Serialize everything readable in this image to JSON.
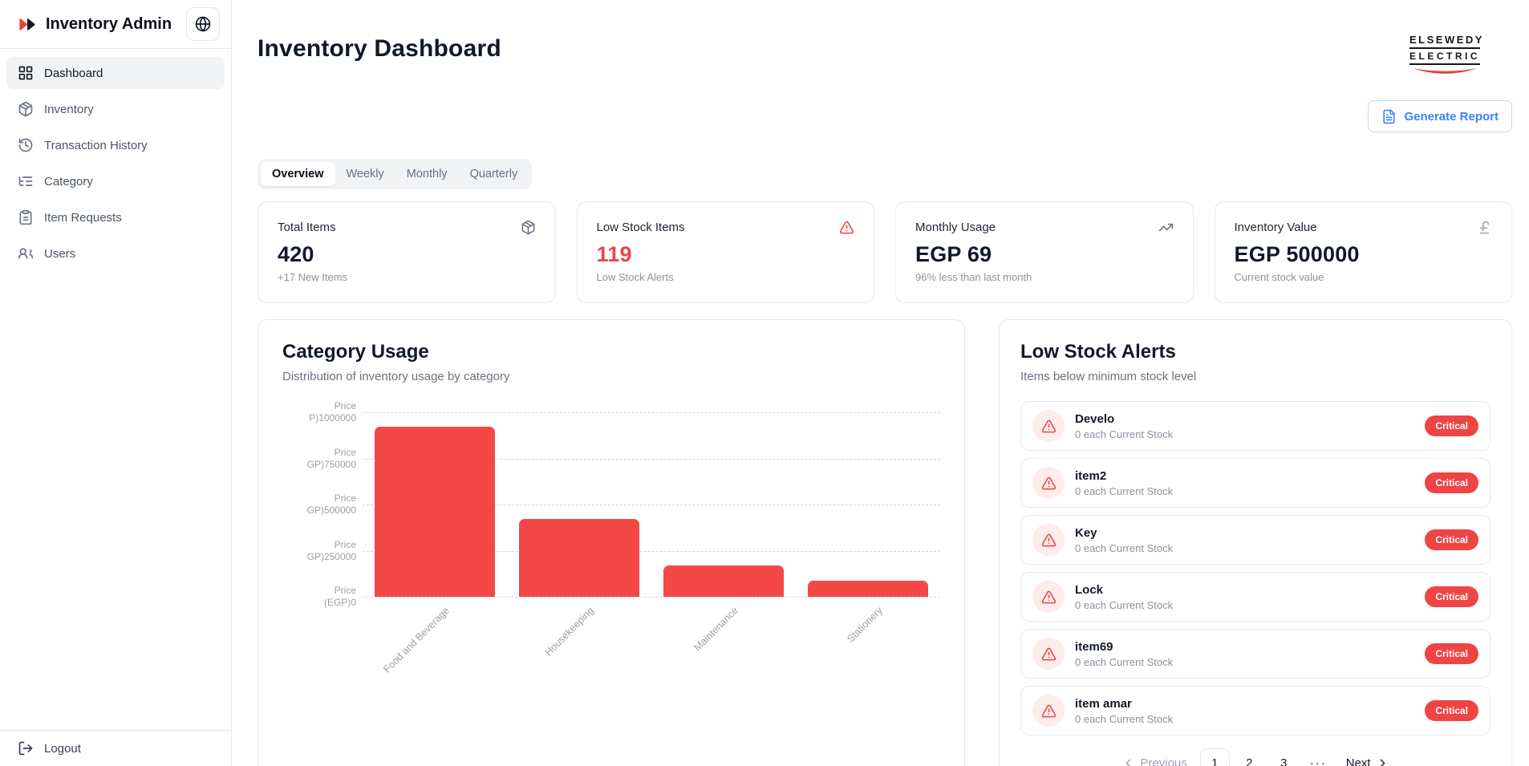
{
  "sidebar": {
    "brand": "Inventory Admin",
    "items": [
      {
        "label": "Dashboard",
        "icon": "icon-dashboard",
        "active": true
      },
      {
        "label": "Inventory",
        "icon": "icon-package",
        "active": false
      },
      {
        "label": "Transaction History",
        "icon": "icon-history",
        "active": false
      },
      {
        "label": "Category",
        "icon": "icon-category",
        "active": false
      },
      {
        "label": "Item Requests",
        "icon": "icon-clipboard",
        "active": false
      },
      {
        "label": "Users",
        "icon": "icon-users",
        "active": false
      }
    ],
    "logout_label": "Logout"
  },
  "header": {
    "title": "Inventory Dashboard",
    "brand_line1": "ELSEWEDY",
    "brand_line2": "ELECTRIC",
    "generate_report_label": "Generate Report"
  },
  "tabs": [
    {
      "label": "Overview",
      "active": true
    },
    {
      "label": "Weekly",
      "active": false
    },
    {
      "label": "Monthly",
      "active": false
    },
    {
      "label": "Quarterly",
      "active": false
    }
  ],
  "stats": [
    {
      "label": "Total Items",
      "value": "420",
      "sub": "+17 New Items",
      "icon": "icon-package",
      "icon_color": "#6b7280",
      "value_color": "#111827"
    },
    {
      "label": "Low Stock Items",
      "value": "119",
      "sub": "Low Stock Alerts",
      "icon": "icon-alert-triangle",
      "icon_color": "#ef4444",
      "value_color": "#ef4444"
    },
    {
      "label": "Monthly Usage",
      "value": "EGP 69",
      "sub": "96% less than last month",
      "icon": "icon-trending-up",
      "icon_color": "#6b7280",
      "value_color": "#111827"
    },
    {
      "label": "Inventory Value",
      "value": "EGP 500000",
      "sub": "Current stock value",
      "icon": "icon-pound",
      "icon_color": "#9ca3af",
      "value_color": "#111827"
    }
  ],
  "chart_panel": {
    "title": "Category Usage",
    "subtitle": "Distribution of inventory usage by category"
  },
  "chart_data": {
    "type": "bar",
    "title": "Category Usage",
    "categories": [
      "Food and Beverage",
      "Housekeeping",
      "Maintenance",
      "Stationery"
    ],
    "values": [
      920000,
      420000,
      170000,
      85000
    ],
    "ylabel": "Price (EGP)",
    "ylim": [
      0,
      1000000
    ],
    "grid": "dashed-horizontal",
    "bar_color": "#f44846",
    "y_ticks": [
      {
        "value": 1000000,
        "label_lines": [
          "Price",
          "P)1000000"
        ]
      },
      {
        "value": 750000,
        "label_lines": [
          "Price",
          "GP)750000"
        ]
      },
      {
        "value": 500000,
        "label_lines": [
          "Price",
          "GP)500000"
        ]
      },
      {
        "value": 250000,
        "label_lines": [
          "Price",
          "GP)250000"
        ]
      },
      {
        "value": 0,
        "label_lines": [
          "Price",
          "(EGP)0"
        ]
      }
    ]
  },
  "alerts_panel": {
    "title": "Low Stock Alerts",
    "subtitle": "Items below minimum stock level",
    "items": [
      {
        "name": "Develo",
        "sub": "0 each Current Stock",
        "badge": "Critical"
      },
      {
        "name": "item2",
        "sub": "0 each Current Stock",
        "badge": "Critical"
      },
      {
        "name": "Key",
        "sub": "0 each Current Stock",
        "badge": "Critical"
      },
      {
        "name": "Lock",
        "sub": "0 each Current Stock",
        "badge": "Critical"
      },
      {
        "name": "item69",
        "sub": "0 each Current Stock",
        "badge": "Critical"
      },
      {
        "name": "item amar",
        "sub": "0 each Current Stock",
        "badge": "Critical"
      }
    ],
    "pagination": {
      "previous_label": "Previous",
      "pages": [
        "1",
        "2",
        "3"
      ],
      "active_page": "1",
      "ellipsis": "···",
      "next_label": "Next"
    }
  }
}
